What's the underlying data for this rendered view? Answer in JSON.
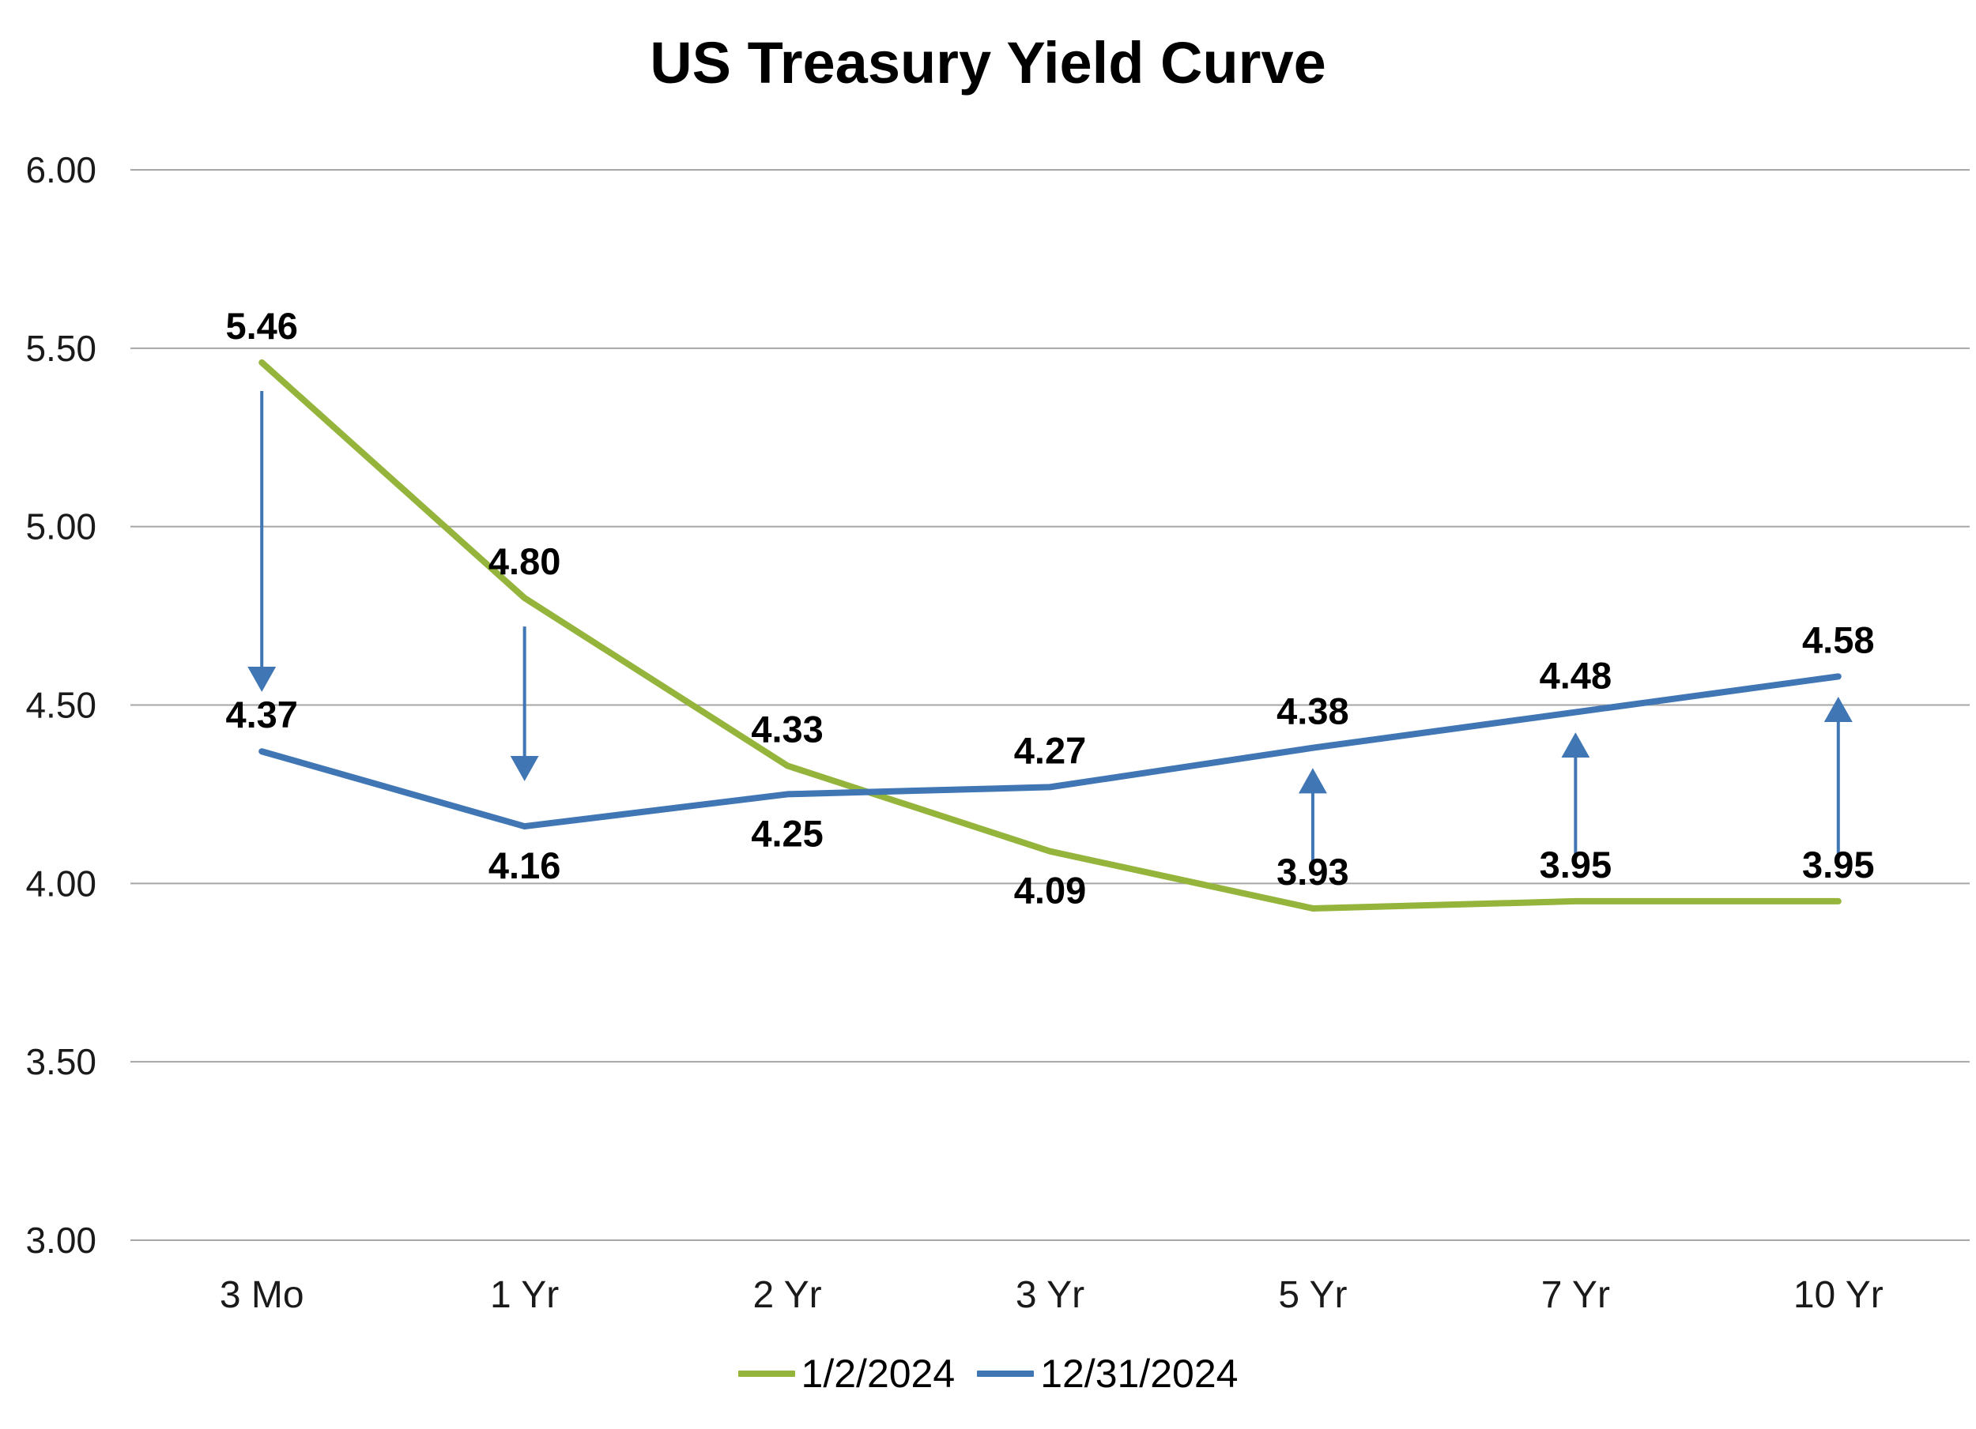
{
  "chart_data": {
    "type": "line",
    "title": "US Treasury Yield Curve",
    "categories": [
      "3 Mo",
      "1 Yr",
      "2 Yr",
      "3 Yr",
      "5 Yr",
      "7 Yr",
      "10 Yr"
    ],
    "series": [
      {
        "name": "1/2/2024",
        "color": "#94B43B",
        "values": [
          5.46,
          4.8,
          4.33,
          4.09,
          3.93,
          3.95,
          3.95
        ],
        "value_labels": [
          "5.46",
          "4.80",
          "4.33",
          "4.09",
          "3.93",
          "3.95",
          "3.95"
        ],
        "label_positions": [
          "above",
          "above",
          "above",
          "below",
          "above",
          "above",
          "above"
        ]
      },
      {
        "name": "12/31/2024",
        "color": "#4076B4",
        "values": [
          4.37,
          4.16,
          4.25,
          4.27,
          4.38,
          4.48,
          4.58
        ],
        "value_labels": [
          "4.37",
          "4.16",
          "4.25",
          "4.27",
          "4.38",
          "4.48",
          "4.58"
        ],
        "label_positions": [
          "above",
          "below",
          "below",
          "above",
          "above",
          "above",
          "above"
        ]
      }
    ],
    "ylim": [
      3.0,
      6.0
    ],
    "ytick_step": 0.5,
    "yticks": [
      "3.00",
      "3.50",
      "4.00",
      "4.50",
      "5.00",
      "5.50",
      "6.00"
    ],
    "grid": true,
    "gridline_color": "#A6A6A6",
    "legend_position": "bottom",
    "arrow_color": "#4076B4",
    "arrows": [
      {
        "category_index": 0,
        "from": 5.38,
        "to": 4.55,
        "direction": "down"
      },
      {
        "category_index": 1,
        "from": 4.72,
        "to": 4.3,
        "direction": "down"
      },
      {
        "category_index": 4,
        "from": 4.06,
        "to": 4.31,
        "direction": "up"
      },
      {
        "category_index": 5,
        "from": 4.08,
        "to": 4.41,
        "direction": "up"
      },
      {
        "category_index": 6,
        "from": 4.08,
        "to": 4.51,
        "direction": "up"
      }
    ]
  }
}
